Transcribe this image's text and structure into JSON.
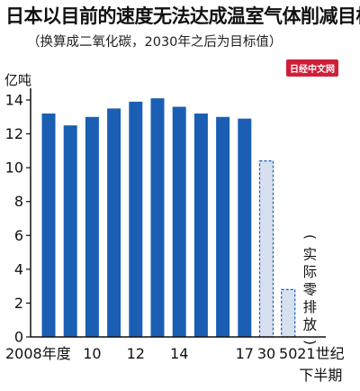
{
  "title": "日本以目前的速度无法达成温室气体削减目标",
  "subtitle": "（换算成二氧化碳，2030年之后为目标值）",
  "watermark": "日经中文网",
  "chart_data": {
    "type": "bar",
    "ylabel": "亿吨",
    "ylim": [
      0,
      14
    ],
    "yticks": [
      0,
      2,
      4,
      6,
      8,
      10,
      12,
      14
    ],
    "grid": false,
    "categories": [
      "2008",
      "2009",
      "2010",
      "2011",
      "2012",
      "2013",
      "2014",
      "2015",
      "2016",
      "2017",
      "2030",
      "2050",
      "21世纪下半期"
    ],
    "x_tick_labels": [
      {
        "category": "2008",
        "label": "2008年度"
      },
      {
        "category": "2010",
        "label": "10"
      },
      {
        "category": "2012",
        "label": "12"
      },
      {
        "category": "2014",
        "label": "14"
      },
      {
        "category": "2017",
        "label": "17"
      },
      {
        "category": "2030",
        "label": "30"
      },
      {
        "category": "2050",
        "label": "50"
      },
      {
        "category": "21世纪下半期",
        "label": "21世纪下半期"
      }
    ],
    "series": [
      {
        "style": "solid",
        "color": "#1a5fb4",
        "values": [
          13.2,
          12.5,
          13.0,
          13.5,
          13.9,
          14.1,
          13.6,
          13.2,
          13.0,
          12.9,
          null,
          null,
          null
        ]
      },
      {
        "style": "dashed",
        "color": "#d7e0ee",
        "values": [
          null,
          null,
          null,
          null,
          null,
          null,
          null,
          null,
          null,
          null,
          10.4,
          2.8,
          0
        ]
      }
    ],
    "annotations": [
      {
        "category": "21世纪下半期",
        "text": "（实际零排放）"
      }
    ]
  }
}
